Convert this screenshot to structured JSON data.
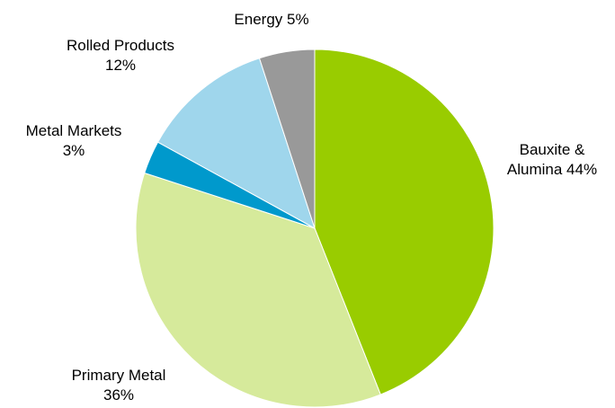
{
  "chart_data": {
    "type": "pie",
    "title": "",
    "start_angle_deg": 0,
    "direction": "clockwise",
    "slices": [
      {
        "name": "Bauxite & Alumina",
        "value": 44,
        "color": "#99cc00",
        "label_lines": [
          "Bauxite &",
          "Alumina 44%"
        ]
      },
      {
        "name": "Primary Metal",
        "value": 36,
        "color": "#d6ea9b",
        "label_lines": [
          "Primary Metal",
          "36%"
        ]
      },
      {
        "name": "Metal Markets",
        "value": 3,
        "color": "#0099cc",
        "label_lines": [
          "Metal Markets",
          "3%"
        ]
      },
      {
        "name": "Rolled Products",
        "value": 12,
        "color": "#9fd6ec",
        "label_lines": [
          "Rolled Products",
          "12%"
        ]
      },
      {
        "name": "Energy",
        "value": 5,
        "color": "#999999",
        "label_lines": [
          "Energy 5%"
        ]
      }
    ]
  }
}
